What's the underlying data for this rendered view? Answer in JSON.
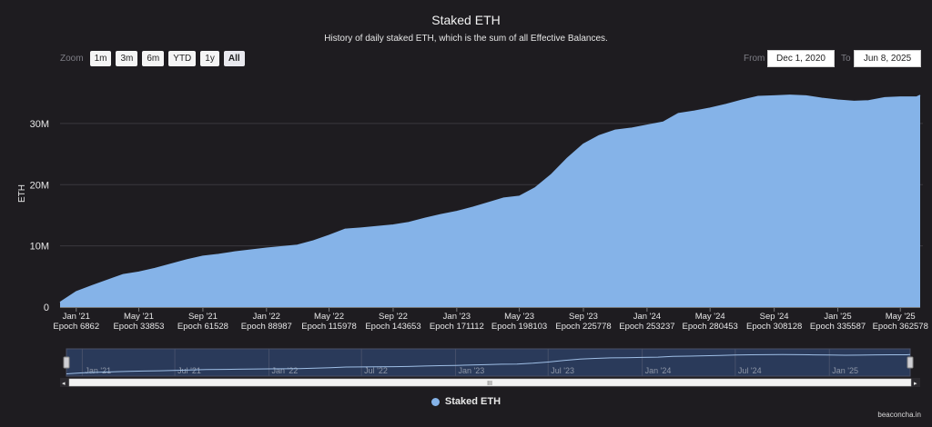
{
  "header": {
    "title": "Staked ETH",
    "subtitle": "History of daily staked ETH, which is the sum of all Effective Balances."
  },
  "zoom": {
    "label": "Zoom",
    "buttons": [
      "1m",
      "3m",
      "6m",
      "YTD",
      "1y",
      "All"
    ],
    "active": "All"
  },
  "range": {
    "from_label": "From",
    "from_value": "Dec 1, 2020",
    "to_label": "To",
    "to_value": "Jun 8, 2025"
  },
  "credit": "beaconcha.in",
  "colors": {
    "series": "#85b3e8",
    "background": "#1e1c20",
    "navigator_fill": "#2a3a5a"
  },
  "chart_data": {
    "type": "area",
    "title": "Staked ETH",
    "ylabel": "ETH",
    "ylim": [
      0,
      38000000
    ],
    "yticks": [
      0,
      10000000,
      20000000,
      30000000
    ],
    "ytick_labels": [
      "0",
      "10M",
      "20M",
      "30M"
    ],
    "xlim": [
      "2020-12-01",
      "2025-06-08"
    ],
    "xticks": [
      {
        "date": "2021-01-01",
        "label": "Jan '21",
        "epoch": "Epoch 6862"
      },
      {
        "date": "2021-05-01",
        "label": "May '21",
        "epoch": "Epoch 33853"
      },
      {
        "date": "2021-09-01",
        "label": "Sep '21",
        "epoch": "Epoch 61528"
      },
      {
        "date": "2022-01-01",
        "label": "Jan '22",
        "epoch": "Epoch 88987"
      },
      {
        "date": "2022-05-01",
        "label": "May '22",
        "epoch": "Epoch 115978"
      },
      {
        "date": "2022-09-01",
        "label": "Sep '22",
        "epoch": "Epoch 143653"
      },
      {
        "date": "2023-01-01",
        "label": "Jan '23",
        "epoch": "Epoch 171112"
      },
      {
        "date": "2023-05-01",
        "label": "May '23",
        "epoch": "Epoch 198103"
      },
      {
        "date": "2023-09-01",
        "label": "Sep '23",
        "epoch": "Epoch 225778"
      },
      {
        "date": "2024-01-01",
        "label": "Jan '24",
        "epoch": "Epoch 253237"
      },
      {
        "date": "2024-05-01",
        "label": "May '24",
        "epoch": "Epoch 280453"
      },
      {
        "date": "2024-09-01",
        "label": "Sep '24",
        "epoch": "Epoch 308128"
      },
      {
        "date": "2025-01-01",
        "label": "Jan '25",
        "epoch": "Epoch 335587"
      },
      {
        "date": "2025-05-01",
        "label": "May '25",
        "epoch": "Epoch 362578"
      }
    ],
    "navigator_ticks": [
      {
        "date": "2021-01-01",
        "label": "Jan '21"
      },
      {
        "date": "2021-07-01",
        "label": "Jul '21"
      },
      {
        "date": "2022-01-01",
        "label": "Jan '22"
      },
      {
        "date": "2022-07-01",
        "label": "Jul '22"
      },
      {
        "date": "2023-01-01",
        "label": "Jan '23"
      },
      {
        "date": "2023-07-01",
        "label": "Jul '23"
      },
      {
        "date": "2024-01-01",
        "label": "Jan '24"
      },
      {
        "date": "2024-07-01",
        "label": "Jul '24"
      },
      {
        "date": "2025-01-01",
        "label": "Jan '25"
      }
    ],
    "series": [
      {
        "name": "Staked ETH",
        "points": [
          [
            "2020-12-01",
            750000
          ],
          [
            "2021-01-01",
            2500000
          ],
          [
            "2021-02-01",
            3500000
          ],
          [
            "2021-04-01",
            5300000
          ],
          [
            "2021-05-01",
            5700000
          ],
          [
            "2021-06-01",
            6300000
          ],
          [
            "2021-08-01",
            7700000
          ],
          [
            "2021-09-01",
            8300000
          ],
          [
            "2021-10-01",
            8600000
          ],
          [
            "2021-11-01",
            9000000
          ],
          [
            "2022-01-01",
            9600000
          ],
          [
            "2022-03-01",
            10100000
          ],
          [
            "2022-04-01",
            10800000
          ],
          [
            "2022-05-01",
            11700000
          ],
          [
            "2022-06-01",
            12700000
          ],
          [
            "2022-07-01",
            12900000
          ],
          [
            "2022-09-01",
            13400000
          ],
          [
            "2022-10-01",
            13800000
          ],
          [
            "2022-11-01",
            14500000
          ],
          [
            "2022-12-01",
            15100000
          ],
          [
            "2023-01-01",
            15600000
          ],
          [
            "2023-02-01",
            16300000
          ],
          [
            "2023-03-01",
            17000000
          ],
          [
            "2023-04-01",
            17800000
          ],
          [
            "2023-05-01",
            18100000
          ],
          [
            "2023-06-01",
            19500000
          ],
          [
            "2023-07-01",
            21600000
          ],
          [
            "2023-08-01",
            24300000
          ],
          [
            "2023-09-01",
            26600000
          ],
          [
            "2023-10-01",
            28000000
          ],
          [
            "2023-11-01",
            28900000
          ],
          [
            "2023-12-01",
            29200000
          ],
          [
            "2024-01-01",
            29700000
          ],
          [
            "2024-02-01",
            30200000
          ],
          [
            "2024-03-01",
            31600000
          ],
          [
            "2024-04-01",
            32000000
          ],
          [
            "2024-05-01",
            32500000
          ],
          [
            "2024-06-01",
            33100000
          ],
          [
            "2024-07-01",
            33800000
          ],
          [
            "2024-08-01",
            34400000
          ],
          [
            "2024-09-01",
            34500000
          ],
          [
            "2024-10-01",
            34600000
          ],
          [
            "2024-11-01",
            34500000
          ],
          [
            "2024-12-01",
            34100000
          ],
          [
            "2025-01-01",
            33800000
          ],
          [
            "2025-02-01",
            33600000
          ],
          [
            "2025-03-01",
            33700000
          ],
          [
            "2025-04-01",
            34200000
          ],
          [
            "2025-05-01",
            34300000
          ],
          [
            "2025-06-01",
            34300000
          ],
          [
            "2025-06-08",
            34600000
          ]
        ]
      }
    ]
  }
}
